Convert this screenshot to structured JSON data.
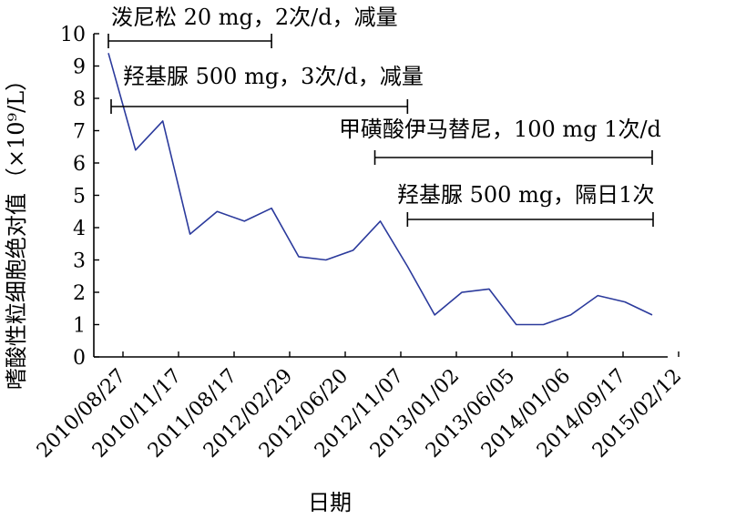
{
  "chart_data": {
    "type": "line",
    "xlabel": "日期",
    "ylabel": "嗜酸性粒细胞绝对值",
    "yunit": "（×10⁹/L）",
    "ylim": [
      0,
      10
    ],
    "yticks": [
      "0",
      "1",
      "2",
      "3",
      "4",
      "5",
      "6",
      "7",
      "8",
      "9",
      "10"
    ],
    "xticks": [
      "2010/08/27",
      "2010/11/17",
      "2011/08/17",
      "2012/02/29",
      "2012/06/20",
      "2012/11/07",
      "2013/01/02",
      "2013/06/05",
      "2014/01/06",
      "2014/09/17",
      "2015/02/12"
    ],
    "series": [
      {
        "values": [
          9.4,
          6.4,
          7.3,
          3.8,
          4.5,
          4.2,
          4.6,
          3.1,
          3.0,
          3.3,
          4.2,
          2.8,
          1.3,
          2.0,
          2.1,
          1.0,
          1.0,
          1.3,
          1.9,
          1.7,
          1.3
        ]
      }
    ],
    "grid": false,
    "annotations": [
      {
        "text": "泼尼松 20 mg，2次/d，减量",
        "start": 0,
        "end": 0.3
      },
      {
        "text": "羟基脲 500 mg，3次/d，减量",
        "start": 0,
        "end": 0.55
      },
      {
        "text": "甲磺酸伊马替尼，100 mg 1次/d",
        "start": 0.49,
        "end": 1.0
      },
      {
        "text": "羟基脲 500 mg，隔日1次",
        "start": 0.55,
        "end": 1.0
      }
    ]
  }
}
